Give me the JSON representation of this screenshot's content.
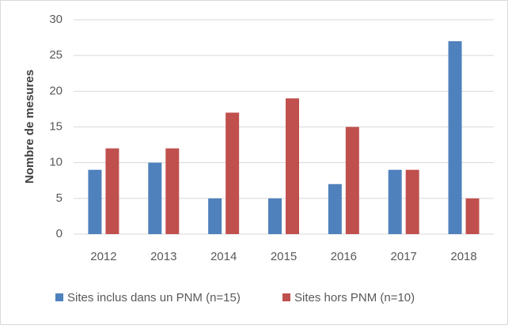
{
  "chart_data": {
    "type": "bar",
    "y_label": "Nombre de mesures",
    "categories": [
      "2012",
      "2013",
      "2014",
      "2015",
      "2016",
      "2017",
      "2018"
    ],
    "series": [
      {
        "name": "Sites inclus dans un PNM (n=15)",
        "color": "#4f81bd",
        "values": [
          9,
          10,
          5,
          5,
          7,
          9,
          27
        ]
      },
      {
        "name": "Sites hors PNM (n=10)",
        "color": "#c0504d",
        "values": [
          12,
          12,
          17,
          19,
          15,
          9,
          5
        ]
      }
    ],
    "ylim": [
      0,
      30
    ],
    "yticks": [
      0,
      5,
      10,
      15,
      20,
      25,
      30
    ],
    "grid": true,
    "legend": "bottom"
  }
}
